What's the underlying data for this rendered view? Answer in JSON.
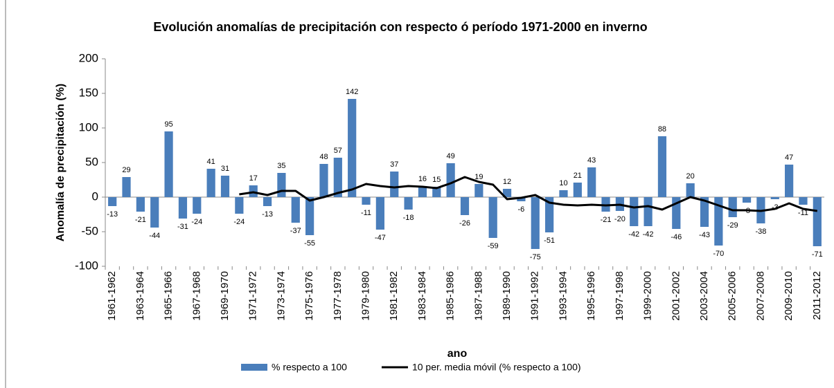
{
  "chart_data": {
    "type": "bar-line",
    "title": "Evolución  anomalías de  precipitación con respecto ó período 1971-2000 en inverno",
    "x_label": "ano",
    "y_label": "Anomalía de precipitación  (%)",
    "categories": [
      "1961-1962",
      null,
      "1963-1964",
      null,
      "1965-1966",
      null,
      "1967-1968",
      null,
      "1969-1970",
      null,
      "1971-1972",
      null,
      "1973-1974",
      null,
      "1975-1976",
      null,
      "1977-1978",
      null,
      "1979-1980",
      null,
      "1981-1982",
      null,
      "1983-1984",
      null,
      "1985-1986",
      null,
      "1987-1988",
      null,
      "1989-1990",
      null,
      "1991-1992",
      null,
      "1993-1994",
      null,
      "1995-1996",
      null,
      "1997-1998",
      null,
      "1999-2000",
      null,
      "2001-2002",
      null,
      "2003-2004",
      null,
      "2005-2006",
      null,
      "2007-2008",
      null,
      "2009-2010",
      null,
      "2011-2012"
    ],
    "series": [
      {
        "name": "% respecto a 100",
        "color": "#4a7ebb",
        "kind": "bar",
        "values": [
          -13,
          29,
          -21,
          -44,
          95,
          -31,
          -24,
          41,
          31,
          -24,
          17,
          -13,
          35,
          -37,
          -55,
          48,
          57,
          142,
          -11,
          -47,
          37,
          -18,
          16,
          15,
          49,
          -26,
          19,
          -59,
          12,
          -6,
          -75,
          -51,
          10,
          21,
          43,
          -21,
          -20,
          -42,
          -42,
          88,
          -46,
          20,
          -43,
          -70,
          -29,
          -8,
          -38,
          -3,
          47,
          -11,
          -71
        ]
      },
      {
        "name": "10 per. media móvil (% respecto a 100)",
        "color": "#000000",
        "kind": "line",
        "values": [
          null,
          null,
          null,
          null,
          null,
          null,
          null,
          null,
          null,
          4,
          7,
          3,
          9,
          9,
          -5,
          0,
          6,
          11,
          19,
          16,
          14,
          16,
          15,
          13,
          20,
          29,
          22,
          18,
          -3,
          -1,
          3,
          -8,
          -11,
          -12,
          -11,
          -12,
          -11,
          -15,
          -13,
          -18,
          -9,
          0,
          -5,
          -12,
          -19,
          -19,
          -20,
          -17,
          -9,
          -17,
          -20
        ]
      }
    ],
    "ylim": [
      -100,
      200
    ],
    "yticks": [
      -100,
      -50,
      0,
      50,
      100,
      150,
      200
    ],
    "grid": false,
    "legend": "bottom"
  }
}
